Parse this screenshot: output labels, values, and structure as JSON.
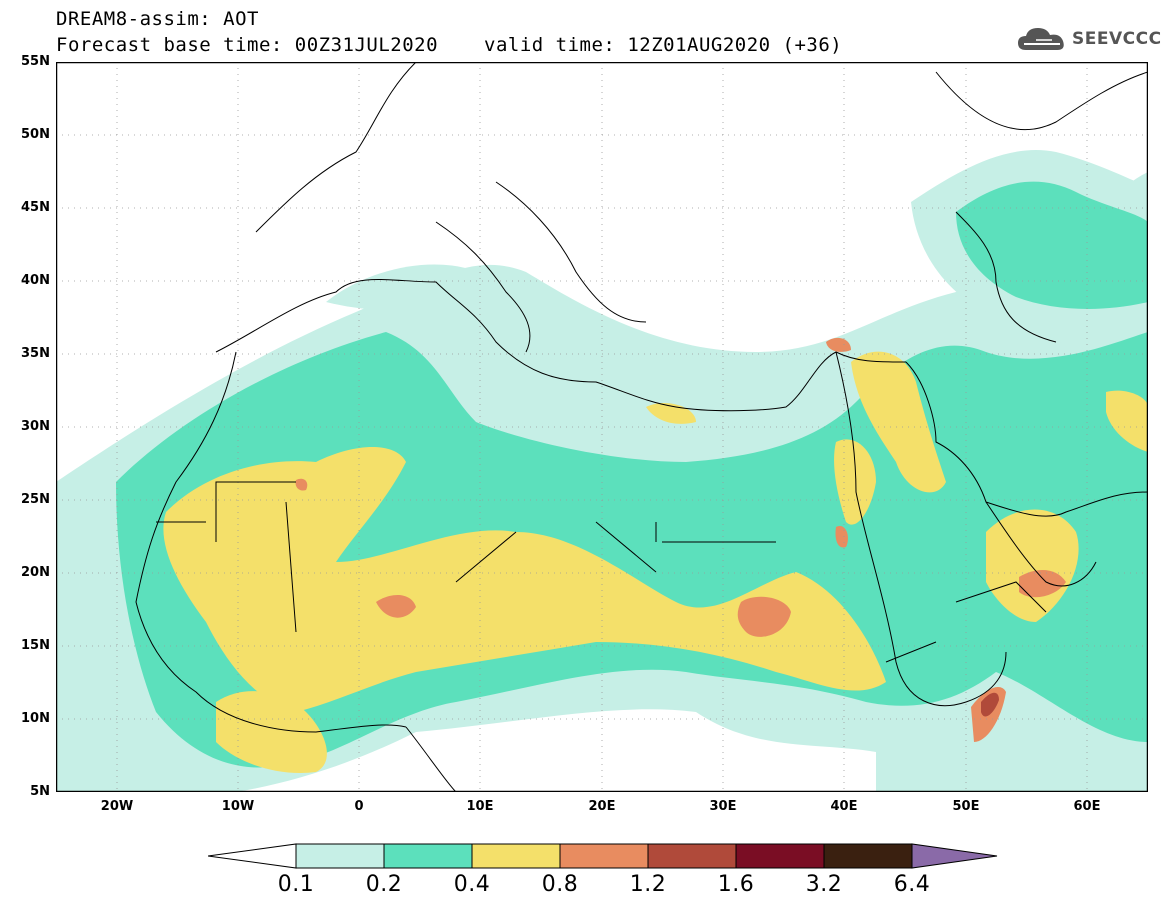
{
  "title": {
    "line1": "DREAM8-assim: AOT",
    "line2_base": "Forecast base time: 00Z31JUL2020",
    "line2_valid": "valid time: 12Z01AUG2020 (+36)"
  },
  "logo": {
    "text": "SEEVCCC",
    "icon": "cloud-icon"
  },
  "map": {
    "lat_labels": [
      "55N",
      "50N",
      "45N",
      "40N",
      "35N",
      "30N",
      "25N",
      "20N",
      "15N",
      "10N",
      "5N"
    ],
    "lon_labels": [
      "20W",
      "10W",
      "0",
      "10E",
      "20E",
      "30E",
      "40E",
      "50E",
      "60E"
    ],
    "lon_range": [
      -25,
      65
    ],
    "lat_range": [
      5,
      55
    ]
  },
  "legend": {
    "levels": [
      "0.1",
      "0.2",
      "0.4",
      "0.8",
      "1.2",
      "1.6",
      "3.2",
      "6.4"
    ],
    "colors": {
      "below": "#ffffff",
      "b1": "#c6efe6",
      "b2": "#5ce0bc",
      "b3": "#f4e06a",
      "b4": "#e88c60",
      "b5": "#b04a3a",
      "b6": "#7a0d24",
      "b7": "#3a2010",
      "above": "#8a6aa8"
    }
  }
}
